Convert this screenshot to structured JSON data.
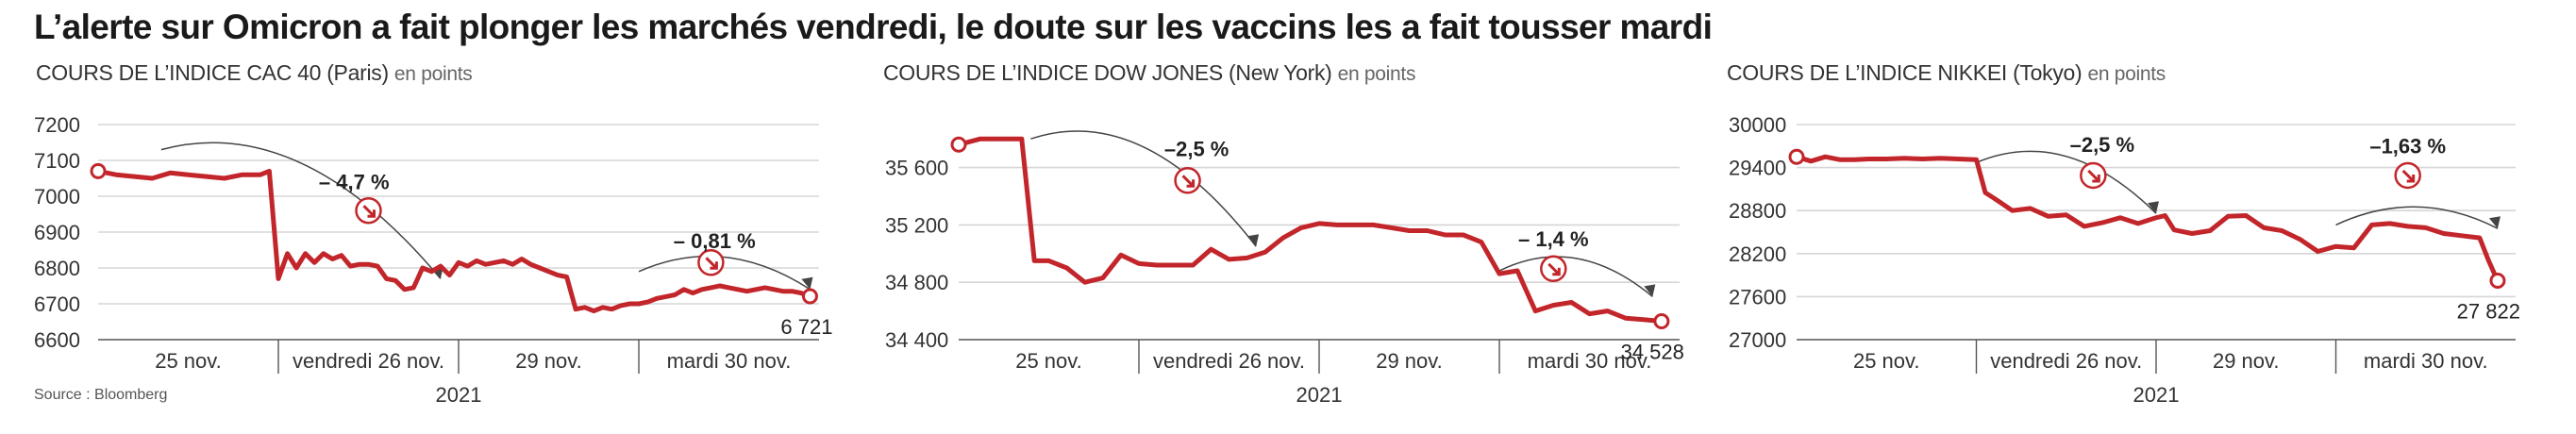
{
  "headline": "L’alerte sur Omicron a fait plonger les marchés vendredi, le doute sur les vaccins les a fait tousser mardi",
  "source": "Source : Bloomberg",
  "colors": {
    "line": "#c2262b",
    "grid": "#d6d6d6",
    "axis": "#555555",
    "text": "#333333"
  },
  "chart_data": [
    {
      "type": "line",
      "title": "COURS DE L’INDICE CAC 40 (Paris)",
      "unit": "en points",
      "x_categories": [
        "25 nov.",
        "vendredi 26 nov.",
        "29 nov.",
        "mardi 30 nov."
      ],
      "x_year": "2021",
      "yticks": [
        6600,
        6700,
        6800,
        6900,
        7000,
        7100,
        7200
      ],
      "yticklabels": [
        "6600",
        "6700",
        "6800",
        "6900",
        "7000",
        "7100",
        "7200"
      ],
      "ylim": [
        6600,
        7200
      ],
      "x": [
        0,
        0.1,
        0.2,
        0.3,
        0.4,
        0.5,
        0.6,
        0.7,
        0.8,
        0.9,
        0.95,
        1.0,
        1.05,
        1.1,
        1.15,
        1.2,
        1.25,
        1.3,
        1.35,
        1.4,
        1.45,
        1.5,
        1.55,
        1.6,
        1.65,
        1.7,
        1.75,
        1.8,
        1.85,
        1.9,
        1.95,
        2.0,
        2.05,
        2.1,
        2.15,
        2.2,
        2.25,
        2.3,
        2.35,
        2.4,
        2.45,
        2.5,
        2.55,
        2.6,
        2.65,
        2.7,
        2.75,
        2.8,
        2.85,
        2.9,
        2.95,
        3.0,
        3.05,
        3.1,
        3.15,
        3.2,
        3.25,
        3.3,
        3.35,
        3.4,
        3.45,
        3.5,
        3.55,
        3.6,
        3.65,
        3.7,
        3.75,
        3.8,
        3.85,
        3.9,
        3.95
      ],
      "y": [
        7070,
        7060,
        7055,
        7050,
        7065,
        7060,
        7055,
        7050,
        7060,
        7060,
        7070,
        6770,
        6840,
        6800,
        6840,
        6815,
        6840,
        6825,
        6835,
        6805,
        6810,
        6810,
        6805,
        6770,
        6765,
        6740,
        6745,
        6800,
        6790,
        6805,
        6780,
        6815,
        6805,
        6820,
        6810,
        6815,
        6820,
        6810,
        6825,
        6810,
        6800,
        6790,
        6780,
        6775,
        6685,
        6690,
        6680,
        6690,
        6685,
        6695,
        6700,
        6700,
        6705,
        6715,
        6720,
        6725,
        6740,
        6730,
        6740,
        6745,
        6750,
        6745,
        6740,
        6735,
        6740,
        6745,
        6740,
        6735,
        6735,
        6730,
        6721
      ],
      "end_label": "6 721",
      "annotations": [
        {
          "text": "– 4,7 %",
          "from_x": 0.35,
          "from_y": 7130,
          "to_x": 1.9,
          "to_y": 6770,
          "arrow_x": 1.5,
          "arrow_y": 6960,
          "label_x": 1.42,
          "label_y": 7020
        },
        {
          "text": "– 0,81 %",
          "from_x": 3.0,
          "from_y": 6790,
          "to_x": 3.95,
          "to_y": 6740,
          "arrow_x": 3.4,
          "arrow_y": 6815,
          "label_x": 3.42,
          "label_y": 6855
        }
      ]
    },
    {
      "type": "line",
      "title": "COURS DE L’INDICE DOW JONES (New York)",
      "unit": "en points",
      "x_categories": [
        "25 nov.",
        "vendredi 26 nov.",
        "29 nov.",
        "mardi 30 nov."
      ],
      "x_year": "2021",
      "yticks": [
        34400,
        34800,
        35200,
        35600
      ],
      "yticklabels": [
        "34 400",
        "34 800",
        "35 200",
        "35 600"
      ],
      "ylim": [
        34400,
        35900
      ],
      "x": [
        0,
        0.12,
        0.25,
        0.35,
        0.42,
        0.5,
        0.6,
        0.7,
        0.8,
        0.9,
        1.0,
        1.1,
        1.2,
        1.3,
        1.4,
        1.5,
        1.6,
        1.7,
        1.8,
        1.9,
        2.0,
        2.1,
        2.2,
        2.3,
        2.4,
        2.5,
        2.6,
        2.7,
        2.8,
        2.9,
        3.0,
        3.1,
        3.2,
        3.3,
        3.4,
        3.5,
        3.6,
        3.7,
        3.8,
        3.9
      ],
      "y": [
        35760,
        35800,
        35800,
        35800,
        34950,
        34950,
        34900,
        34800,
        34830,
        34990,
        34930,
        34920,
        34920,
        34920,
        35030,
        34960,
        34970,
        35010,
        35110,
        35180,
        35210,
        35200,
        35200,
        35200,
        35180,
        35160,
        35160,
        35130,
        35130,
        35080,
        34860,
        34880,
        34600,
        34640,
        34660,
        34580,
        34600,
        34550,
        34540,
        34528
      ],
      "end_label": "34 528",
      "annotations": [
        {
          "text": "–2,5 %",
          "from_x": 0.4,
          "from_y": 35800,
          "to_x": 1.65,
          "to_y": 35050,
          "arrow_x": 1.27,
          "arrow_y": 35510,
          "label_x": 1.32,
          "label_y": 35680
        },
        {
          "text": "– 1,4 %",
          "from_x": 3.0,
          "from_y": 34880,
          "to_x": 3.85,
          "to_y": 34700,
          "arrow_x": 3.3,
          "arrow_y": 34895,
          "label_x": 3.3,
          "label_y": 35050
        }
      ]
    },
    {
      "type": "line",
      "title": "COURS DE L’INDICE NIKKEI (Tokyo)",
      "unit": "en points",
      "x_categories": [
        "25 nov.",
        "vendredi 26 nov.",
        "29 nov.",
        "mardi 30 nov."
      ],
      "x_year": "2021",
      "yticks": [
        27000,
        27600,
        28200,
        28800,
        29400,
        30000
      ],
      "yticklabels": [
        "27000",
        "27600",
        "28200",
        "28800",
        "29400",
        "30000"
      ],
      "ylim": [
        27000,
        30000
      ],
      "x": [
        0,
        0.08,
        0.16,
        0.24,
        0.32,
        0.4,
        0.5,
        0.6,
        0.7,
        0.8,
        0.9,
        1.0,
        1.05,
        1.1,
        1.2,
        1.3,
        1.4,
        1.5,
        1.6,
        1.7,
        1.8,
        1.9,
        2.0,
        2.05,
        2.1,
        2.2,
        2.3,
        2.4,
        2.5,
        2.6,
        2.7,
        2.8,
        2.9,
        3.0,
        3.1,
        3.2,
        3.3,
        3.4,
        3.5,
        3.6,
        3.7,
        3.8,
        3.85,
        3.9
      ],
      "y": [
        29550,
        29490,
        29550,
        29510,
        29510,
        29520,
        29520,
        29530,
        29520,
        29530,
        29520,
        29510,
        29050,
        28970,
        28800,
        28830,
        28720,
        28740,
        28580,
        28630,
        28700,
        28620,
        28700,
        28730,
        28530,
        28480,
        28520,
        28720,
        28730,
        28560,
        28520,
        28400,
        28230,
        28300,
        28280,
        28600,
        28620,
        28580,
        28560,
        28480,
        28450,
        28420,
        28100,
        27822
      ],
      "end_label": "27 822",
      "annotations": [
        {
          "text": "–2,5 %",
          "from_x": 1.0,
          "from_y": 29470,
          "to_x": 2.0,
          "to_y": 28760,
          "arrow_x": 1.65,
          "arrow_y": 29290,
          "label_x": 1.7,
          "label_y": 29620
        },
        {
          "text": "–1,63 %",
          "from_x": 3.0,
          "from_y": 28600,
          "to_x": 3.9,
          "to_y": 28550,
          "arrow_x": 3.4,
          "arrow_y": 29290,
          "label_x": 3.4,
          "label_y": 29600
        }
      ]
    }
  ]
}
